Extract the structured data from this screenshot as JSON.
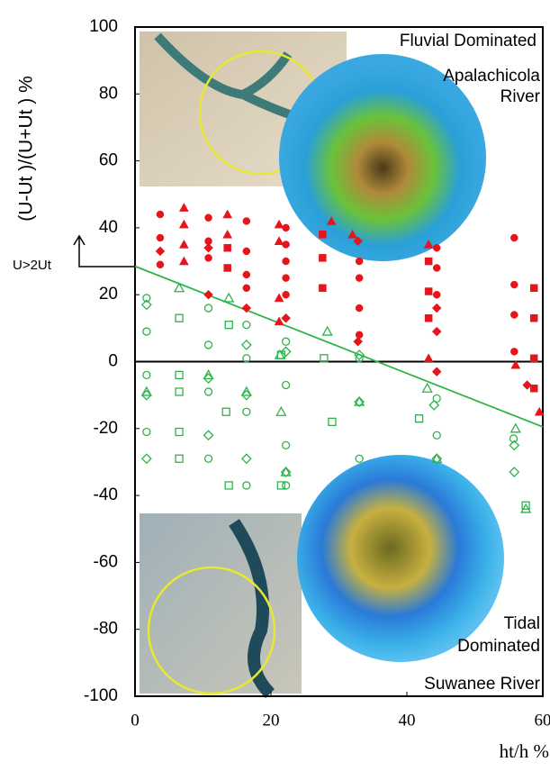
{
  "chart_data": {
    "type": "scatter",
    "y_label": "(U-Ut )/(U+Ut ) %",
    "x_label": "ht/h %",
    "annotations": [
      "Fluvial Dominated",
      "Apalachicola",
      "River",
      "Tidal",
      "Dominated",
      "Suwanee River",
      "U>2Ut"
    ],
    "xlim": [
      0,
      60
    ],
    "xticks": [
      0,
      20,
      40,
      60
    ],
    "ylim": [
      -100,
      100
    ],
    "yticks": [
      100,
      80,
      60,
      40,
      20,
      0,
      -20,
      -40,
      -60,
      -80,
      -100
    ],
    "trend_line": {
      "color": "#2db34a",
      "x": [
        0,
        60
      ],
      "y": [
        28.5,
        -19.5
      ]
    },
    "series": [
      {
        "marker": "circle",
        "color": "#e8141c",
        "filled": true,
        "x": [
          3.7,
          3.7,
          3.7,
          10.8,
          10.8,
          10.8,
          16.4,
          16.4,
          16.4,
          16.4,
          22.2,
          22.2,
          22.2,
          22.2,
          22.2,
          33,
          33,
          33,
          33,
          44.4,
          44.4,
          44.4,
          55.8,
          55.8,
          55.8,
          55.8
        ],
        "values": [
          44,
          37,
          29,
          43,
          36,
          31,
          42,
          33,
          26,
          22,
          40,
          35,
          30,
          25,
          20,
          30,
          25,
          16,
          8,
          34,
          28,
          20,
          37,
          23,
          14,
          3
        ]
      },
      {
        "marker": "triangle",
        "color": "#e8141c",
        "filled": true,
        "x": [
          7.2,
          7.2,
          7.2,
          7.2,
          13.6,
          13.6,
          21.2,
          21.2,
          21.2,
          21.2,
          28.9,
          32,
          43.2,
          43.2,
          56,
          59.5
        ],
        "values": [
          46,
          41,
          35,
          30,
          44,
          38,
          41,
          36,
          19,
          12,
          42,
          38,
          35,
          1,
          -1,
          -15
        ]
      },
      {
        "marker": "square",
        "color": "#e8141c",
        "filled": true,
        "x": [
          13.6,
          13.6,
          27.6,
          27.6,
          27.6,
          43.2,
          43.2,
          43.2,
          58.7,
          58.7,
          58.7,
          58.7
        ],
        "values": [
          34,
          28,
          38,
          31,
          22,
          30,
          21,
          13,
          22,
          13,
          1,
          -8
        ]
      },
      {
        "marker": "diamond",
        "color": "#e8141c",
        "filled": true,
        "x": [
          3.7,
          10.8,
          10.8,
          16.4,
          22.2,
          32.8,
          32.8,
          44.4,
          44.4,
          44.4,
          57.7
        ],
        "values": [
          33,
          34,
          20,
          16,
          13,
          36,
          6,
          16,
          9,
          -3,
          -7
        ]
      },
      {
        "marker": "circle",
        "color": "#2db34a",
        "filled": false,
        "x": [
          1.7,
          1.7,
          10.8,
          10.8,
          16.4,
          16.4,
          22.2,
          22.2,
          22.2,
          33,
          44.4,
          44.4,
          55.7,
          1.7,
          1.7,
          10.8,
          10.8,
          16.4,
          22.2,
          33,
          16.4
        ],
        "values": [
          19,
          9,
          16,
          5,
          11,
          1,
          6,
          -7,
          -25,
          1,
          -11,
          -22,
          -23,
          -4,
          -21,
          -9,
          -29,
          -15,
          -37,
          -29,
          -37
        ]
      },
      {
        "marker": "triangle",
        "color": "#2db34a",
        "filled": false,
        "x": [
          6.5,
          13.8,
          21.5,
          28.3,
          43,
          56,
          21.3,
          1.7,
          10.8,
          16.4,
          22.2,
          33,
          44.4,
          57.5
        ],
        "values": [
          22,
          19,
          -15,
          9,
          -8,
          -20,
          2,
          -9,
          -4,
          -9,
          -33,
          -12,
          -29,
          -44
        ]
      },
      {
        "marker": "square",
        "color": "#2db34a",
        "filled": false,
        "x": [
          6.5,
          13.8,
          21.5,
          27.8,
          41.8,
          13.8,
          21.5,
          6.5,
          6.5,
          6.5,
          6.5,
          29,
          13.4,
          57.5
        ],
        "values": [
          13,
          11,
          2,
          1,
          -17,
          -37,
          -37,
          -29,
          -9,
          -4,
          -21,
          -18,
          -15,
          -43
        ]
      },
      {
        "marker": "diamond",
        "color": "#2db34a",
        "filled": false,
        "x": [
          1.7,
          16.4,
          22.2,
          33,
          44,
          55.8,
          1.7,
          10.8,
          16.4,
          22.2,
          33,
          44.4,
          1.7,
          10.8,
          16.4,
          55.8
        ],
        "values": [
          17,
          5,
          3,
          2,
          -13,
          -25,
          -10,
          -22,
          -10,
          -33,
          -12,
          -29,
          -29,
          -5,
          -29,
          -33
        ]
      }
    ]
  }
}
